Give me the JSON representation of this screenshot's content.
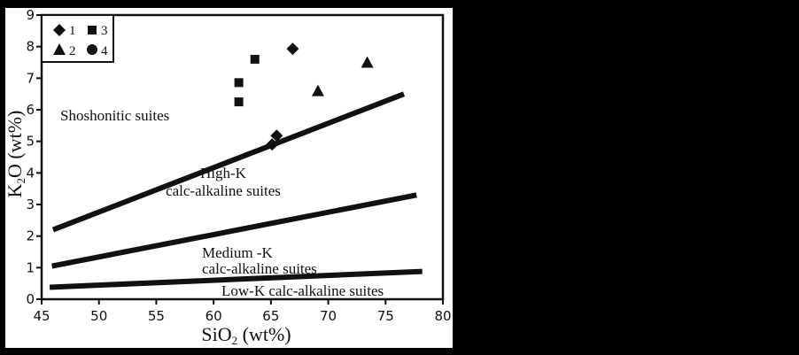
{
  "chart_data": {
    "type": "scatter",
    "title": "",
    "xlabel": "SiO2 (wt%)",
    "ylabel": "K2O (wt%)",
    "xlim": [
      45,
      80
    ],
    "ylim": [
      0,
      9
    ],
    "x_ticks": [
      45,
      50,
      55,
      60,
      65,
      70,
      75,
      80
    ],
    "y_ticks": [
      0,
      1,
      2,
      3,
      4,
      5,
      6,
      7,
      8,
      9
    ],
    "grid": false,
    "legend_position": "top-left",
    "legend": [
      {
        "label": "1",
        "marker": "diamond"
      },
      {
        "label": "2",
        "marker": "triangle"
      },
      {
        "label": "3",
        "marker": "square"
      },
      {
        "label": "4",
        "marker": "circle"
      }
    ],
    "series": [
      {
        "name": "1",
        "marker": "diamond",
        "points": [
          [
            66.9,
            7.93
          ],
          [
            65.5,
            5.18
          ],
          [
            65.1,
            4.9
          ]
        ]
      },
      {
        "name": "2",
        "marker": "triangle",
        "points": [
          [
            73.4,
            7.5
          ],
          [
            69.1,
            6.6
          ]
        ]
      },
      {
        "name": "3",
        "marker": "square",
        "points": [
          [
            63.6,
            7.6
          ],
          [
            62.2,
            6.86
          ],
          [
            62.2,
            6.25
          ]
        ]
      },
      {
        "name": "4",
        "marker": "circle",
        "points": []
      }
    ],
    "boundary_lines": [
      {
        "name": "shoshonitic/high-K",
        "from": [
          46.0,
          2.2
        ],
        "to": [
          76.6,
          6.5
        ]
      },
      {
        "name": "high-K/medium-K",
        "from": [
          45.9,
          1.05
        ],
        "to": [
          77.7,
          3.3
        ]
      },
      {
        "name": "medium-K/low-K",
        "from": [
          45.7,
          0.38
        ],
        "to": [
          78.2,
          0.88
        ]
      }
    ],
    "annotations": [
      {
        "text": "Shoshonitic suites",
        "x": 52.5,
        "y": 5.9
      },
      {
        "text": "High-K",
        "x": 62.5,
        "y": 4.15
      },
      {
        "text": "calc-alkaline suites",
        "x": 62.5,
        "y": 3.55
      },
      {
        "text": "Medium -K",
        "x": 52.0,
        "y": 1.5
      },
      {
        "text": "calc-alkaline suites",
        "x": 52.0,
        "y": 0.95
      },
      {
        "text": "Low-K calc-alkaline suites",
        "x": 65.5,
        "y": 0.25
      }
    ]
  },
  "labels": {
    "xlabel_main": "SiO",
    "xlabel_sub": "2",
    "xlabel_rest": " (wt%)",
    "ylabel_main": "K",
    "ylabel_sub": "2",
    "ylabel_rest": "O (wt%)",
    "legend_1": "1",
    "legend_2": "2",
    "legend_3": "3",
    "legend_4": "4",
    "region_shoshonitic": "Shoshonitic suites",
    "region_highk_1": "High-K",
    "region_highk_2": "calc-alkaline suites",
    "region_medk_1": "Medium -K",
    "region_medk_2": "calc-alkaline suites",
    "region_lowk": "Low-K calc-alkaline suites"
  }
}
